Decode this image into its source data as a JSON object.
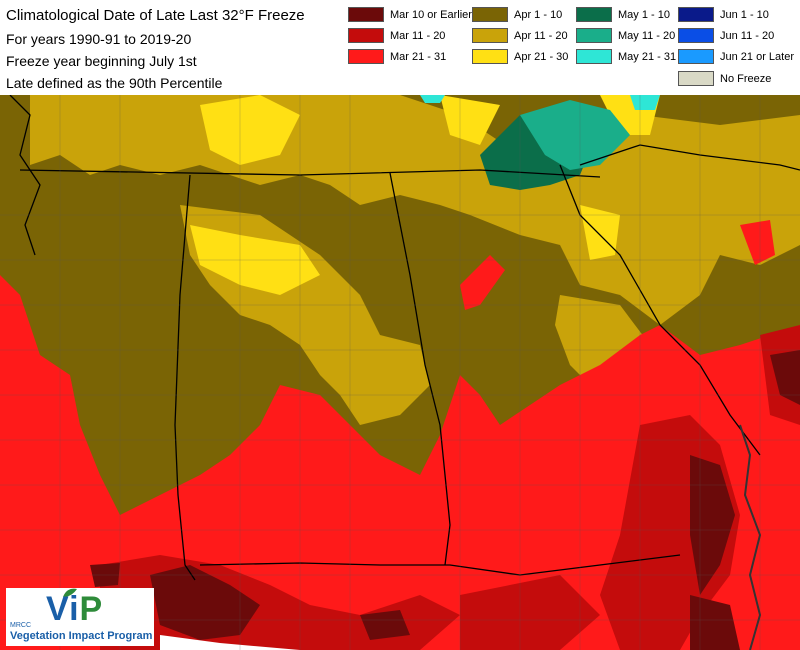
{
  "title": {
    "main": "Climatological Date of Late Last 32°F Freeze",
    "years": "For years 1990-91 to 2019-20",
    "freeze_year": "Freeze year beginning July 1st",
    "late_def": "Late defined as the 90th Percentile"
  },
  "legend": [
    {
      "label": "Mar 10 or Earlier",
      "color": "#6b0a0a"
    },
    {
      "label": "Mar 11 - 20",
      "color": "#c40c0c"
    },
    {
      "label": "Mar 21 - 31",
      "color": "#ff1a1a"
    },
    {
      "label": "Apr 1 - 10",
      "color": "#7a6405"
    },
    {
      "label": "Apr 11 - 20",
      "color": "#c9a30a"
    },
    {
      "label": "Apr 21 - 30",
      "color": "#ffe014"
    },
    {
      "label": "May 1 - 10",
      "color": "#0b6e4a"
    },
    {
      "label": "May 11 - 20",
      "color": "#1aae8a"
    },
    {
      "label": "May 21 - 31",
      "color": "#2ee6d6"
    },
    {
      "label": "Jun 1 - 10",
      "color": "#0a1a8a"
    },
    {
      "label": "Jun 11 - 20",
      "color": "#0a4ee6"
    },
    {
      "label": "Jun 21 or Later",
      "color": "#1a9aff"
    },
    {
      "label": "No Freeze",
      "color": "#d9d9c6"
    }
  ],
  "logo": {
    "vi": "Vi",
    "p": "P",
    "mrcc": "MRCC",
    "name": "Vegetation Impact Program"
  }
}
